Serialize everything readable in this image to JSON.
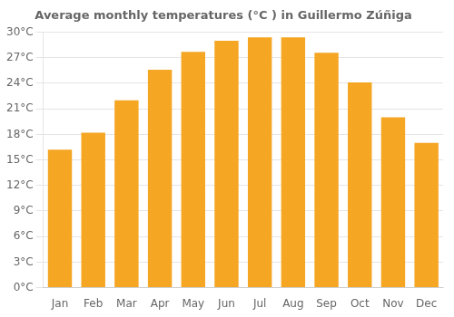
{
  "chart_data": {
    "type": "bar",
    "title": "Average monthly temperatures (°C ) in Guillermo Zúñiga",
    "categories": [
      "Jan",
      "Feb",
      "Mar",
      "Apr",
      "May",
      "Jun",
      "Jul",
      "Aug",
      "Sep",
      "Oct",
      "Nov",
      "Dec"
    ],
    "values": [
      16.2,
      18.2,
      22.0,
      25.6,
      27.7,
      29.0,
      29.4,
      29.4,
      27.6,
      24.1,
      20.0,
      17.0
    ],
    "color": "#F5A623",
    "ylim": [
      0,
      30
    ],
    "yticks": [
      {
        "value": 0,
        "label": "0°C"
      },
      {
        "value": 3,
        "label": "3°C"
      },
      {
        "value": 6,
        "label": "6°C"
      },
      {
        "value": 9,
        "label": "9°C"
      },
      {
        "value": 12,
        "label": "12°C"
      },
      {
        "value": 15,
        "label": "15°C"
      },
      {
        "value": 18,
        "label": "18°C"
      },
      {
        "value": 21,
        "label": "21°C"
      },
      {
        "value": 24,
        "label": "24°C"
      },
      {
        "value": 27,
        "label": "27°C"
      },
      {
        "value": 30,
        "label": "30°C"
      }
    ],
    "grid": true
  }
}
